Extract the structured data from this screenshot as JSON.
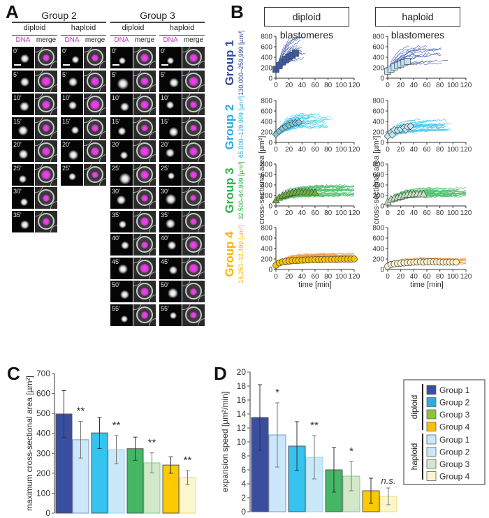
{
  "panel_labels": {
    "a": "A",
    "b": "B",
    "c": "C",
    "d": "D"
  },
  "panel_a": {
    "groups": [
      {
        "title": "Group 2",
        "conditions": [
          {
            "title": "diploid",
            "timepoints": [
              "0'",
              "5'",
              "10'",
              "15'",
              "20'",
              "25'",
              "30'",
              "35'"
            ]
          },
          {
            "title": "haploid",
            "timepoints": [
              "0'",
              "5'",
              "10'",
              "15'",
              "20'",
              "25'"
            ]
          }
        ]
      },
      {
        "title": "Group 3",
        "conditions": [
          {
            "title": "diploid",
            "timepoints": [
              "0'",
              "5'",
              "10'",
              "15'",
              "20'",
              "25'",
              "30'",
              "35'",
              "40'",
              "45'",
              "50'",
              "55'"
            ]
          },
          {
            "title": "haploid",
            "timepoints": [
              "0'",
              "5'",
              "10'",
              "15'",
              "20'",
              "25'",
              "30'",
              "35'",
              "40'",
              "45'",
              "50'",
              "55'"
            ]
          }
        ]
      }
    ],
    "channel_labels": {
      "dna": "DNA",
      "merge": "merge"
    },
    "colors": {
      "dna": "#c040c0"
    }
  },
  "panel_b": {
    "column_headers": [
      "diploid blastomeres",
      "haploid blastomeres"
    ],
    "y_label": "cross-sectional area [µm²]",
    "x_label": "time [min]",
    "x_ticks": [
      "0",
      "20",
      "40",
      "60",
      "80",
      "100",
      "120"
    ],
    "y_ticks": [
      "0",
      "200",
      "400",
      "600",
      "800"
    ],
    "rows": [
      {
        "group": "Group 1",
        "range": "130,000–259,999 [µm³]",
        "color": "#2e4d9e",
        "line_color": "#3a56b0",
        "marker": "square",
        "diploid_fill": "#3b5aa8",
        "haploid_fill": "#bfe0f7"
      },
      {
        "group": "Group 2",
        "range": "65,000–129,999 [µm³]",
        "color": "#29aee0",
        "line_color": "#2cc0ee",
        "marker": "diamond",
        "diploid_fill": "#7fc6d6",
        "haploid_fill": "#bfe6f5"
      },
      {
        "group": "Group 3",
        "range": "32,500–64,999 [µm³]",
        "color": "#2db34a",
        "line_color": "#3cb85c",
        "marker": "triangle",
        "diploid_fill": "#6cb33a",
        "haploid_fill": "#c6e3c0"
      },
      {
        "group": "Group 4",
        "range": "16,250–32,499 [µm³]",
        "color": "#f5b700",
        "line_color": "#f08a2a",
        "marker": "circle",
        "diploid_fill": "#f5c400",
        "haploid_fill": "#fbf2cf"
      }
    ]
  },
  "chart_data": [
    {
      "type": "line",
      "title": "Group 1 diploid blastomeres",
      "xlabel": "time [min]",
      "ylabel": "cross-sectional area [µm²]",
      "xlim": [
        0,
        120
      ],
      "ylim": [
        0,
        800
      ],
      "x": [
        0,
        5,
        10,
        15,
        20,
        25,
        30
      ],
      "series": [
        {
          "name": "mean",
          "values": [
            170,
            240,
            310,
            360,
            405,
            440,
            475
          ]
        }
      ]
    },
    {
      "type": "line",
      "title": "Group 1 haploid blastomeres",
      "xlabel": "time [min]",
      "ylabel": "cross-sectional area [µm²]",
      "xlim": [
        0,
        120
      ],
      "ylim": [
        0,
        800
      ],
      "x": [
        0,
        5,
        10,
        15,
        20,
        25,
        30
      ],
      "series": [
        {
          "name": "mean",
          "values": [
            135,
            175,
            215,
            245,
            270,
            295,
            320
          ]
        }
      ]
    },
    {
      "type": "line",
      "title": "Group 2 diploid blastomeres",
      "xlabel": "time [min]",
      "ylabel": "cross-sectional area [µm²]",
      "xlim": [
        0,
        120
      ],
      "ylim": [
        0,
        800
      ],
      "x": [
        0,
        5,
        10,
        15,
        20,
        25,
        30,
        35
      ],
      "series": [
        {
          "name": "mean",
          "values": [
            155,
            215,
            265,
            300,
            330,
            355,
            375,
            385
          ]
        }
      ]
    },
    {
      "type": "line",
      "title": "Group 2 haploid blastomeres",
      "xlabel": "time [min]",
      "ylabel": "cross-sectional area [µm²]",
      "xlim": [
        0,
        120
      ],
      "ylim": [
        0,
        800
      ],
      "x": [
        0,
        5,
        7,
        10,
        15,
        20,
        25,
        28,
        30,
        35
      ],
      "series": [
        {
          "name": "mean",
          "values": [
            120,
            195,
            145,
            240,
            230,
            255,
            285,
            240,
            300,
            310
          ]
        }
      ]
    },
    {
      "type": "line",
      "title": "Group 3 diploid blastomeres",
      "xlabel": "time [min]",
      "ylabel": "cross-sectional area [µm²]",
      "xlim": [
        0,
        120
      ],
      "ylim": [
        0,
        800
      ],
      "x": [
        0,
        5,
        10,
        15,
        20,
        25,
        30,
        35,
        40,
        45,
        50,
        55,
        60
      ],
      "series": [
        {
          "name": "mean",
          "values": [
            110,
            160,
            195,
            215,
            235,
            250,
            260,
            265,
            265,
            265,
            262,
            260,
            258
          ]
        }
      ]
    },
    {
      "type": "line",
      "title": "Group 3 haploid blastomeres",
      "xlabel": "time [min]",
      "ylabel": "cross-sectional area [µm²]",
      "xlim": [
        0,
        120
      ],
      "ylim": [
        0,
        800
      ],
      "x": [
        0,
        5,
        10,
        15,
        20,
        25,
        30,
        35,
        40,
        45,
        50,
        55
      ],
      "series": [
        {
          "name": "mean",
          "values": [
            75,
            125,
            145,
            160,
            180,
            200,
            215,
            220,
            225,
            230,
            225,
            225
          ]
        }
      ]
    },
    {
      "type": "line",
      "title": "Group 4 diploid blastomeres",
      "xlabel": "time [min]",
      "ylabel": "cross-sectional area [µm²]",
      "xlim": [
        0,
        120
      ],
      "ylim": [
        0,
        800
      ],
      "x": [
        0,
        5,
        10,
        15,
        20,
        25,
        30,
        35,
        40,
        45,
        50,
        55,
        60,
        65,
        70,
        75,
        80,
        85,
        90,
        95,
        100,
        105,
        110,
        115,
        120
      ],
      "series": [
        {
          "name": "mean",
          "values": [
            80,
            125,
            145,
            155,
            162,
            168,
            172,
            176,
            178,
            180,
            182,
            184,
            186,
            188,
            189,
            190,
            191,
            192,
            193,
            194,
            195,
            196,
            197,
            198,
            200
          ]
        }
      ]
    },
    {
      "type": "line",
      "title": "Group 4 haploid blastomeres",
      "xlabel": "time [min]",
      "ylabel": "cross-sectional area [µm²]",
      "xlim": [
        0,
        120
      ],
      "ylim": [
        0,
        800
      ],
      "x": [
        0,
        5,
        10,
        15,
        20,
        25,
        30,
        35,
        40,
        45,
        50,
        55,
        60,
        65,
        70,
        75,
        80,
        85,
        90,
        95,
        100,
        105
      ],
      "series": [
        {
          "name": "mean",
          "values": [
            60,
            95,
            105,
            115,
            120,
            125,
            130,
            135,
            140,
            142,
            145,
            140,
            145,
            148,
            145,
            145,
            142,
            140,
            140,
            140,
            140,
            140
          ]
        }
      ]
    },
    {
      "type": "bar",
      "title": "",
      "xlabel": "",
      "ylabel": "maximum cross-sectional area [µm²]",
      "ylim": [
        0,
        700
      ],
      "y_ticks": [
        0,
        100,
        200,
        300,
        400,
        500,
        600,
        700
      ],
      "categories": [
        "Group 1 diploid",
        "Group 1 haploid",
        "Group 2 diploid",
        "Group 2 haploid",
        "Group 3 diploid",
        "Group 3 haploid",
        "Group 4 diploid",
        "Group 4 haploid"
      ],
      "values": [
        497,
        368,
        402,
        318,
        323,
        252,
        241,
        178
      ],
      "error": [
        117,
        92,
        78,
        71,
        58,
        50,
        41,
        35
      ],
      "significance": [
        "**",
        "**",
        "**",
        "**"
      ],
      "fills": [
        "#3a4ea0",
        "#cbe7fb",
        "#35c3ef",
        "#cbe8f8",
        "#45b764",
        "#d2e8c8",
        "#fdc900",
        "#fbf6cc"
      ],
      "strokes": [
        "#555",
        "#7e96d0",
        "#555",
        "#8fd6f3",
        "#555",
        "#7fcf8f",
        "#555",
        "#f5d86b"
      ]
    },
    {
      "type": "bar",
      "title": "",
      "xlabel": "",
      "ylabel": "expansion speed [µm²/min]",
      "ylim": [
        0,
        20
      ],
      "y_ticks": [
        0,
        2,
        4,
        6,
        8,
        10,
        12,
        14,
        16,
        18,
        20
      ],
      "categories": [
        "Group 1 diploid",
        "Group 1 haploid",
        "Group 2 diploid",
        "Group 2 haploid",
        "Group 3 diploid",
        "Group 3 haploid",
        "Group 4 diploid",
        "Group 4 haploid"
      ],
      "values": [
        13.5,
        11.0,
        9.4,
        7.8,
        6.0,
        5.1,
        3.0,
        2.2
      ],
      "error": [
        4.7,
        4.6,
        3.5,
        3.1,
        3.2,
        2.1,
        1.8,
        1.2
      ],
      "significance": [
        "*",
        "**",
        "*",
        "n.s."
      ],
      "fills": [
        "#3a4ea0",
        "#cbe7fb",
        "#35c3ef",
        "#cbe8f8",
        "#45b764",
        "#d2e8c8",
        "#fdc900",
        "#fbf6cc"
      ],
      "strokes": [
        "#555",
        "#7e96d0",
        "#555",
        "#8fd6f3",
        "#555",
        "#7fcf8f",
        "#555",
        "#f5d86b"
      ],
      "legend": {
        "position": "right",
        "sections": [
          {
            "title": "diploid",
            "items": [
              {
                "label": "Group 1",
                "color": "#3a4ea0"
              },
              {
                "label": "Group 2",
                "color": "#29aee0"
              },
              {
                "label": "Group 3",
                "color": "#8cc43c"
              },
              {
                "label": "Group 4",
                "color": "#f9c000"
              }
            ]
          },
          {
            "title": "haploid",
            "items": [
              {
                "label": "Group 1",
                "color": "#cbe7fb"
              },
              {
                "label": "Group 2",
                "color": "#cbe8f8"
              },
              {
                "label": "Group 3",
                "color": "#d2e8c8"
              },
              {
                "label": "Group 4",
                "color": "#fbf6cc"
              }
            ]
          }
        ]
      }
    }
  ]
}
